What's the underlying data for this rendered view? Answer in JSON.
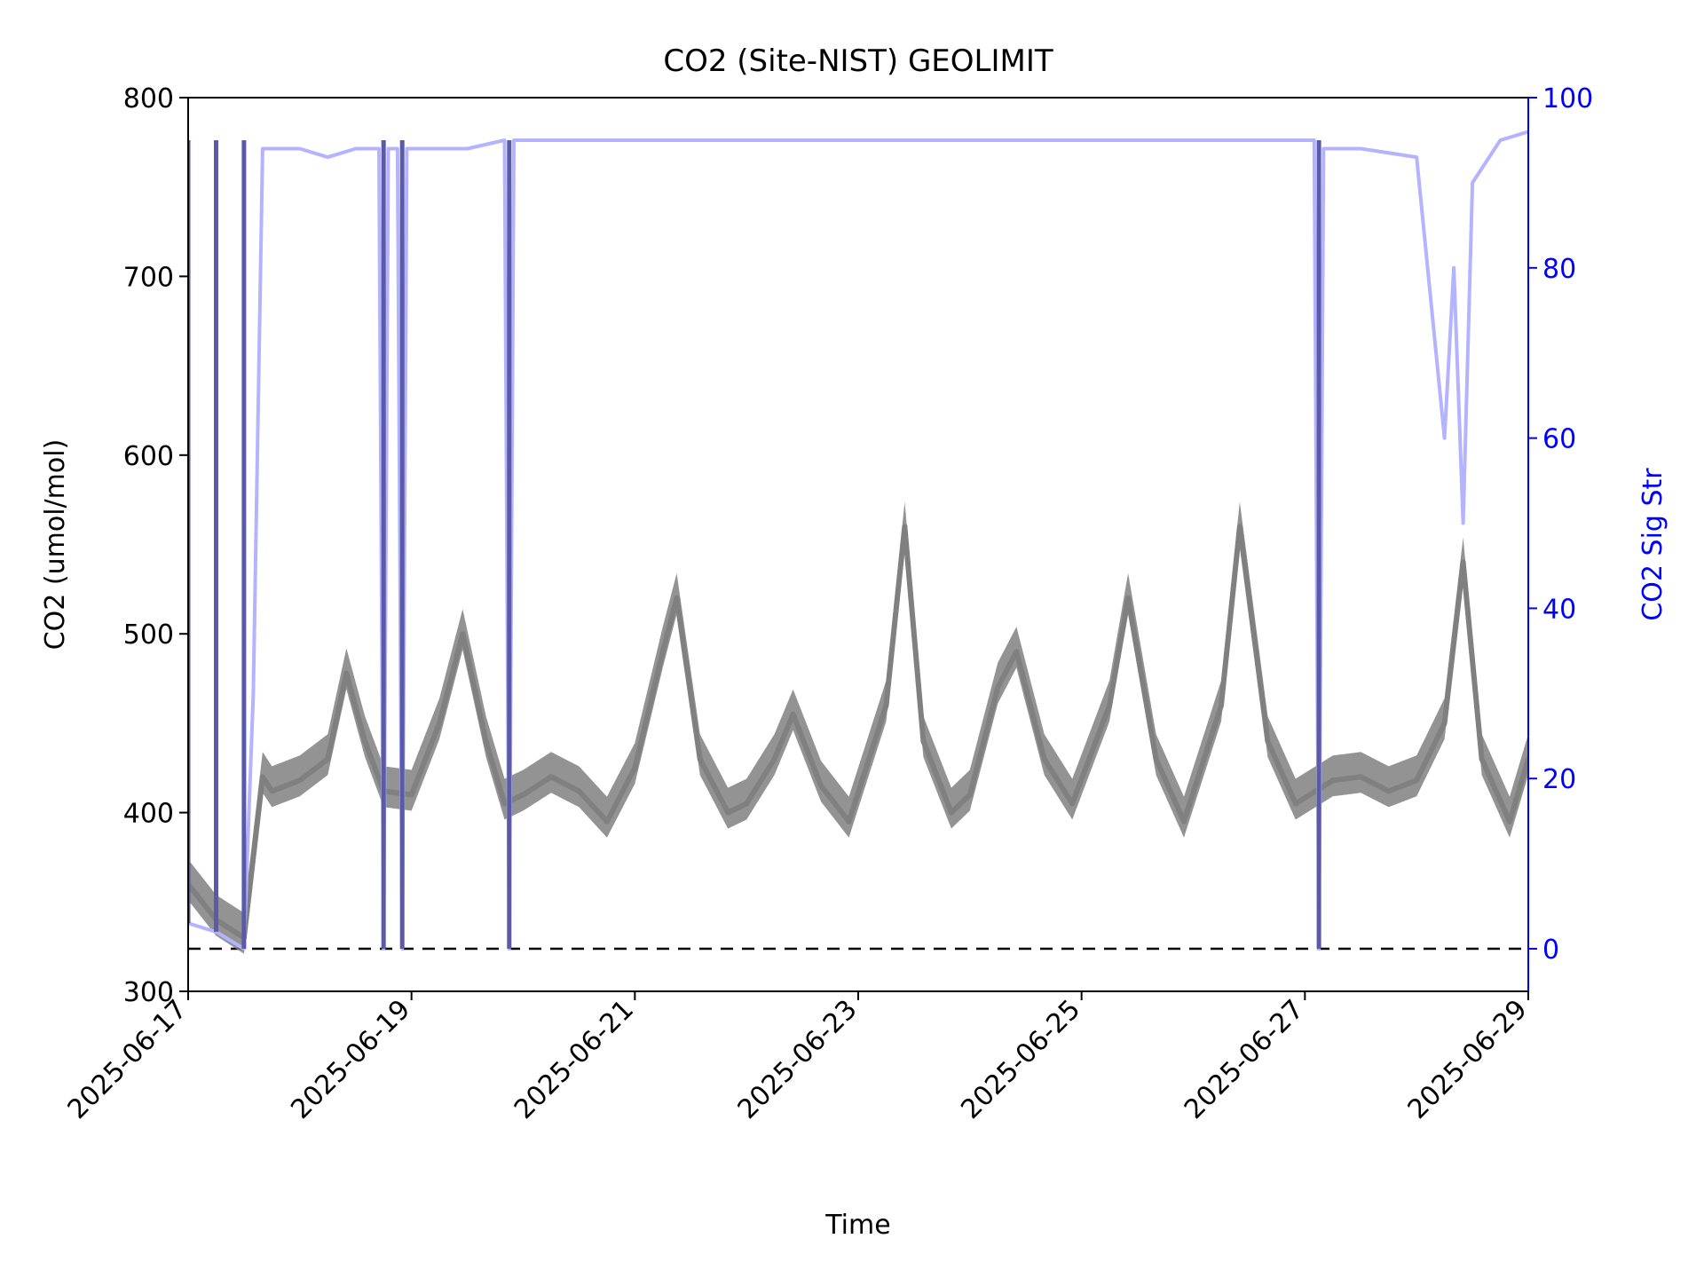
{
  "chart_data": {
    "type": "line",
    "title": "CO2 (Site-NIST) GEOLIMIT",
    "xlabel": "Time",
    "ylabel": "CO2 (umol/mol)",
    "ylabel_right": "CO2 Sig Str",
    "xlim": [
      "2025-06-17",
      "2025-06-29"
    ],
    "ylim": [
      300,
      800
    ],
    "ylim_right": [
      -5,
      100
    ],
    "x_ticks": [
      "2025-06-17",
      "2025-06-19",
      "2025-06-21",
      "2025-06-23",
      "2025-06-25",
      "2025-06-27",
      "2025-06-29"
    ],
    "y_ticks": [
      300,
      400,
      500,
      600,
      700,
      800
    ],
    "y_ticks_right": [
      0,
      20,
      40,
      60,
      80,
      100
    ],
    "grid": false,
    "reference_line": {
      "axis": "right",
      "value": 0,
      "style": "dashed",
      "color": "#000000"
    },
    "colors": {
      "co2": "#808080",
      "signal": "#b3b3ff",
      "right_axis": "#0000ff",
      "signal_low": "#5a5aa8"
    },
    "series": [
      {
        "axis": "left",
        "points": [
          [
            "2025-06-17 00:00",
            360
          ],
          [
            "2025-06-17 06:00",
            340
          ],
          [
            "2025-06-17 12:00",
            330
          ],
          [
            "2025-06-17 16:00",
            420
          ],
          [
            "2025-06-17 18:00",
            412
          ],
          [
            "2025-06-18 00:00",
            418
          ],
          [
            "2025-06-18 06:00",
            430
          ],
          [
            "2025-06-18 10:00",
            478
          ],
          [
            "2025-06-18 14:00",
            440
          ],
          [
            "2025-06-18 18:00",
            412
          ],
          [
            "2025-06-19 00:00",
            410
          ],
          [
            "2025-06-19 06:00",
            450
          ],
          [
            "2025-06-19 11:00",
            500
          ],
          [
            "2025-06-19 16:00",
            440
          ],
          [
            "2025-06-19 20:00",
            405
          ],
          [
            "2025-06-20 00:00",
            410
          ],
          [
            "2025-06-20 06:00",
            420
          ],
          [
            "2025-06-20 12:00",
            412
          ],
          [
            "2025-06-20 18:00",
            395
          ],
          [
            "2025-06-21 00:00",
            425
          ],
          [
            "2025-06-21 06:00",
            490
          ],
          [
            "2025-06-21 09:00",
            520
          ],
          [
            "2025-06-21 14:00",
            430
          ],
          [
            "2025-06-21 20:00",
            400
          ],
          [
            "2025-06-22 00:00",
            405
          ],
          [
            "2025-06-22 06:00",
            430
          ],
          [
            "2025-06-22 10:00",
            455
          ],
          [
            "2025-06-22 16:00",
            415
          ],
          [
            "2025-06-22 22:00",
            395
          ],
          [
            "2025-06-23 06:00",
            460
          ],
          [
            "2025-06-23 10:00",
            560
          ],
          [
            "2025-06-23 14:00",
            440
          ],
          [
            "2025-06-23 20:00",
            400
          ],
          [
            "2025-06-24 00:00",
            410
          ],
          [
            "2025-06-24 06:00",
            470
          ],
          [
            "2025-06-24 10:00",
            490
          ],
          [
            "2025-06-24 16:00",
            430
          ],
          [
            "2025-06-24 22:00",
            405
          ],
          [
            "2025-06-25 06:00",
            460
          ],
          [
            "2025-06-25 10:00",
            520
          ],
          [
            "2025-06-25 16:00",
            430
          ],
          [
            "2025-06-25 22:00",
            395
          ],
          [
            "2025-06-26 06:00",
            460
          ],
          [
            "2025-06-26 10:00",
            560
          ],
          [
            "2025-06-26 16:00",
            440
          ],
          [
            "2025-06-26 22:00",
            405
          ],
          [
            "2025-06-27 06:00",
            418
          ],
          [
            "2025-06-27 12:00",
            420
          ],
          [
            "2025-06-27 18:00",
            412
          ],
          [
            "2025-06-28 00:00",
            418
          ],
          [
            "2025-06-28 06:00",
            450
          ],
          [
            "2025-06-28 10:00",
            540
          ],
          [
            "2025-06-28 14:00",
            430
          ],
          [
            "2025-06-28 20:00",
            395
          ],
          [
            "2025-06-29 00:00",
            430
          ]
        ]
      },
      {
        "axis": "right",
        "points": [
          [
            "2025-06-17 00:00",
            3
          ],
          [
            "2025-06-17 06:00",
            2
          ],
          [
            "2025-06-17 12:00",
            0
          ],
          [
            "2025-06-17 14:00",
            30
          ],
          [
            "2025-06-17 16:00",
            94
          ],
          [
            "2025-06-18 00:00",
            94
          ],
          [
            "2025-06-18 06:00",
            93
          ],
          [
            "2025-06-18 12:00",
            94
          ],
          [
            "2025-06-18 17:00",
            94
          ],
          [
            "2025-06-18 18:00",
            0
          ],
          [
            "2025-06-18 19:00",
            94
          ],
          [
            "2025-06-18 21:00",
            94
          ],
          [
            "2025-06-18 22:00",
            0
          ],
          [
            "2025-06-18 23:00",
            94
          ],
          [
            "2025-06-19 12:00",
            94
          ],
          [
            "2025-06-19 20:00",
            95
          ],
          [
            "2025-06-19 21:00",
            0
          ],
          [
            "2025-06-19 22:00",
            95
          ],
          [
            "2025-06-20 00:00",
            95
          ],
          [
            "2025-06-20 12:00",
            95
          ],
          [
            "2025-06-21 00:00",
            95
          ],
          [
            "2025-06-22 00:00",
            95
          ],
          [
            "2025-06-23 00:00",
            95
          ],
          [
            "2025-06-24 00:00",
            95
          ],
          [
            "2025-06-25 00:00",
            95
          ],
          [
            "2025-06-26 00:00",
            95
          ],
          [
            "2025-06-27 00:00",
            95
          ],
          [
            "2025-06-27 02:00",
            95
          ],
          [
            "2025-06-27 03:00",
            0
          ],
          [
            "2025-06-27 04:00",
            94
          ],
          [
            "2025-06-27 12:00",
            94
          ],
          [
            "2025-06-28 00:00",
            93
          ],
          [
            "2025-06-28 06:00",
            60
          ],
          [
            "2025-06-28 08:00",
            80
          ],
          [
            "2025-06-28 10:00",
            50
          ],
          [
            "2025-06-28 12:00",
            90
          ],
          [
            "2025-06-28 18:00",
            95
          ],
          [
            "2025-06-29 00:00",
            96
          ]
        ]
      }
    ]
  }
}
